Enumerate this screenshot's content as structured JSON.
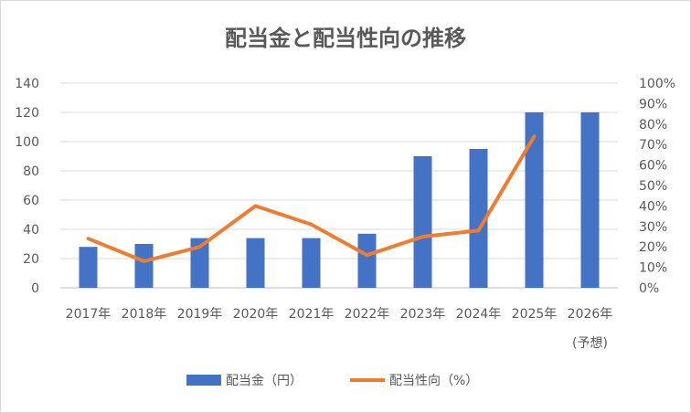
{
  "chart_data": {
    "type": "bar",
    "title": "配当金と配当性向の推移",
    "categories": [
      "2017年",
      "2018年",
      "2019年",
      "2020年",
      "2021年",
      "2022年",
      "2023年",
      "2024年",
      "2025年",
      "2026年"
    ],
    "category_sublabels": [
      "",
      "",
      "",
      "",
      "",
      "",
      "",
      "",
      "",
      "(予想)"
    ],
    "series": [
      {
        "name": "配当金（円）",
        "kind": "bar",
        "axis": "left",
        "color": "#4472C4",
        "values": [
          28,
          30,
          34,
          34,
          34,
          37,
          90,
          95,
          120,
          120
        ]
      },
      {
        "name": "配当性向（%）",
        "kind": "line",
        "axis": "right",
        "color": "#ED7D31",
        "values": [
          24,
          13,
          20,
          40,
          31,
          16,
          25,
          28,
          74,
          null
        ]
      }
    ],
    "ylim": [
      0,
      140
    ],
    "yticks": [
      "0",
      "20",
      "40",
      "60",
      "80",
      "100",
      "120",
      "140"
    ],
    "y2lim": [
      0,
      100
    ],
    "y2ticks": [
      "0%",
      "10%",
      "20%",
      "30%",
      "40%",
      "50%",
      "60%",
      "70%",
      "80%",
      "90%",
      "100%"
    ],
    "grid": true,
    "legend": "bottom"
  }
}
